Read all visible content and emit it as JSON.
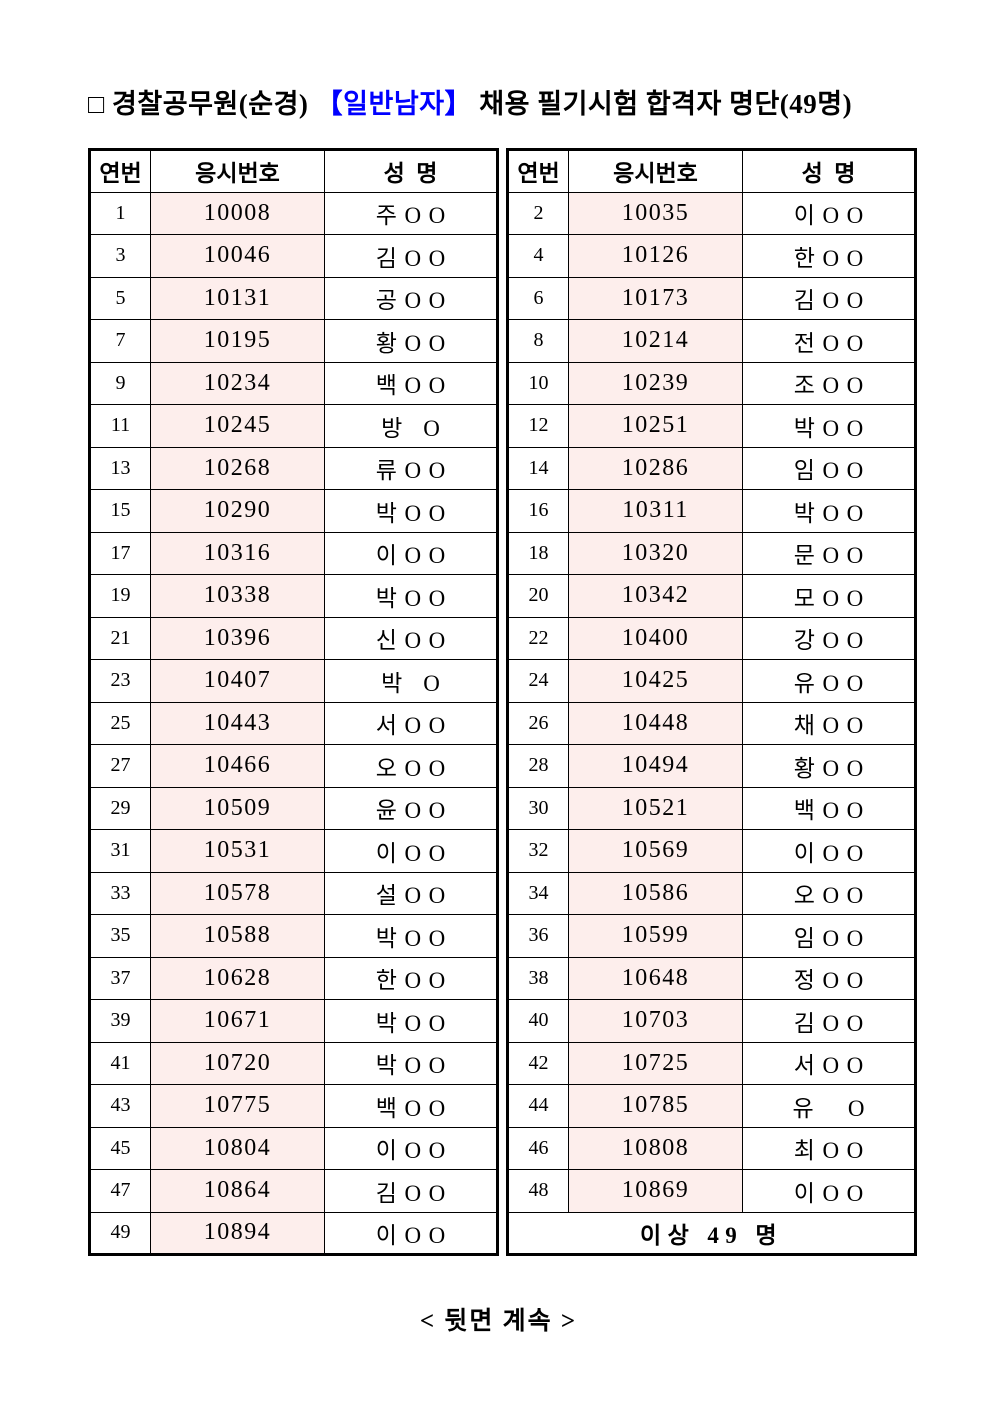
{
  "page": {
    "title": {
      "prefix": "□ 경찰공무원(순경) ",
      "highlight": "【일반남자】",
      "suffix": " 채용 필기시험 합격자 명단(49명)",
      "highlight_color": "#0000ff"
    },
    "footer": "< 뒷면 계속 >"
  },
  "table": {
    "headers": {
      "no": "연번",
      "exam_no": "응시번호",
      "name": "성  명"
    },
    "summary": "이상 49 명",
    "accent_bg": "#fdeeec",
    "left_rows": [
      {
        "no": "1",
        "exam_no": "10008",
        "name": "주OO"
      },
      {
        "no": "3",
        "exam_no": "10046",
        "name": "김OO"
      },
      {
        "no": "5",
        "exam_no": "10131",
        "name": "공OO"
      },
      {
        "no": "7",
        "exam_no": "10195",
        "name": "황OO"
      },
      {
        "no": "9",
        "exam_no": "10234",
        "name": "백OO"
      },
      {
        "no": "11",
        "exam_no": "10245",
        "name": "방 O"
      },
      {
        "no": "13",
        "exam_no": "10268",
        "name": "류OO"
      },
      {
        "no": "15",
        "exam_no": "10290",
        "name": "박OO"
      },
      {
        "no": "17",
        "exam_no": "10316",
        "name": "이OO"
      },
      {
        "no": "19",
        "exam_no": "10338",
        "name": "박OO"
      },
      {
        "no": "21",
        "exam_no": "10396",
        "name": "신OO"
      },
      {
        "no": "23",
        "exam_no": "10407",
        "name": "박 O"
      },
      {
        "no": "25",
        "exam_no": "10443",
        "name": "서OO"
      },
      {
        "no": "27",
        "exam_no": "10466",
        "name": "오OO"
      },
      {
        "no": "29",
        "exam_no": "10509",
        "name": "윤OO"
      },
      {
        "no": "31",
        "exam_no": "10531",
        "name": "이OO"
      },
      {
        "no": "33",
        "exam_no": "10578",
        "name": "설OO"
      },
      {
        "no": "35",
        "exam_no": "10588",
        "name": "박OO"
      },
      {
        "no": "37",
        "exam_no": "10628",
        "name": "한OO"
      },
      {
        "no": "39",
        "exam_no": "10671",
        "name": "박OO"
      },
      {
        "no": "41",
        "exam_no": "10720",
        "name": "박OO"
      },
      {
        "no": "43",
        "exam_no": "10775",
        "name": "백OO"
      },
      {
        "no": "45",
        "exam_no": "10804",
        "name": "이OO"
      },
      {
        "no": "47",
        "exam_no": "10864",
        "name": "김OO"
      },
      {
        "no": "49",
        "exam_no": "10894",
        "name": "이OO"
      }
    ],
    "right_rows": [
      {
        "no": "2",
        "exam_no": "10035",
        "name": "이OO"
      },
      {
        "no": "4",
        "exam_no": "10126",
        "name": "한OO"
      },
      {
        "no": "6",
        "exam_no": "10173",
        "name": "김OO"
      },
      {
        "no": "8",
        "exam_no": "10214",
        "name": "전OO"
      },
      {
        "no": "10",
        "exam_no": "10239",
        "name": "조OO"
      },
      {
        "no": "12",
        "exam_no": "10251",
        "name": "박OO"
      },
      {
        "no": "14",
        "exam_no": "10286",
        "name": "임OO"
      },
      {
        "no": "16",
        "exam_no": "10311",
        "name": "박OO"
      },
      {
        "no": "18",
        "exam_no": "10320",
        "name": "문OO"
      },
      {
        "no": "20",
        "exam_no": "10342",
        "name": "모OO"
      },
      {
        "no": "22",
        "exam_no": "10400",
        "name": "강OO"
      },
      {
        "no": "24",
        "exam_no": "10425",
        "name": "유OO"
      },
      {
        "no": "26",
        "exam_no": "10448",
        "name": "채OO"
      },
      {
        "no": "28",
        "exam_no": "10494",
        "name": "황OO"
      },
      {
        "no": "30",
        "exam_no": "10521",
        "name": "백OO"
      },
      {
        "no": "32",
        "exam_no": "10569",
        "name": "이OO"
      },
      {
        "no": "34",
        "exam_no": "10586",
        "name": "오OO"
      },
      {
        "no": "36",
        "exam_no": "10599",
        "name": "임OO"
      },
      {
        "no": "38",
        "exam_no": "10648",
        "name": "정OO"
      },
      {
        "no": "40",
        "exam_no": "10703",
        "name": "김OO"
      },
      {
        "no": "42",
        "exam_no": "10725",
        "name": "서OO"
      },
      {
        "no": "44",
        "exam_no": "10785",
        "name": "유  O"
      },
      {
        "no": "46",
        "exam_no": "10808",
        "name": "최OO"
      },
      {
        "no": "48",
        "exam_no": "10869",
        "name": "이OO"
      }
    ]
  }
}
